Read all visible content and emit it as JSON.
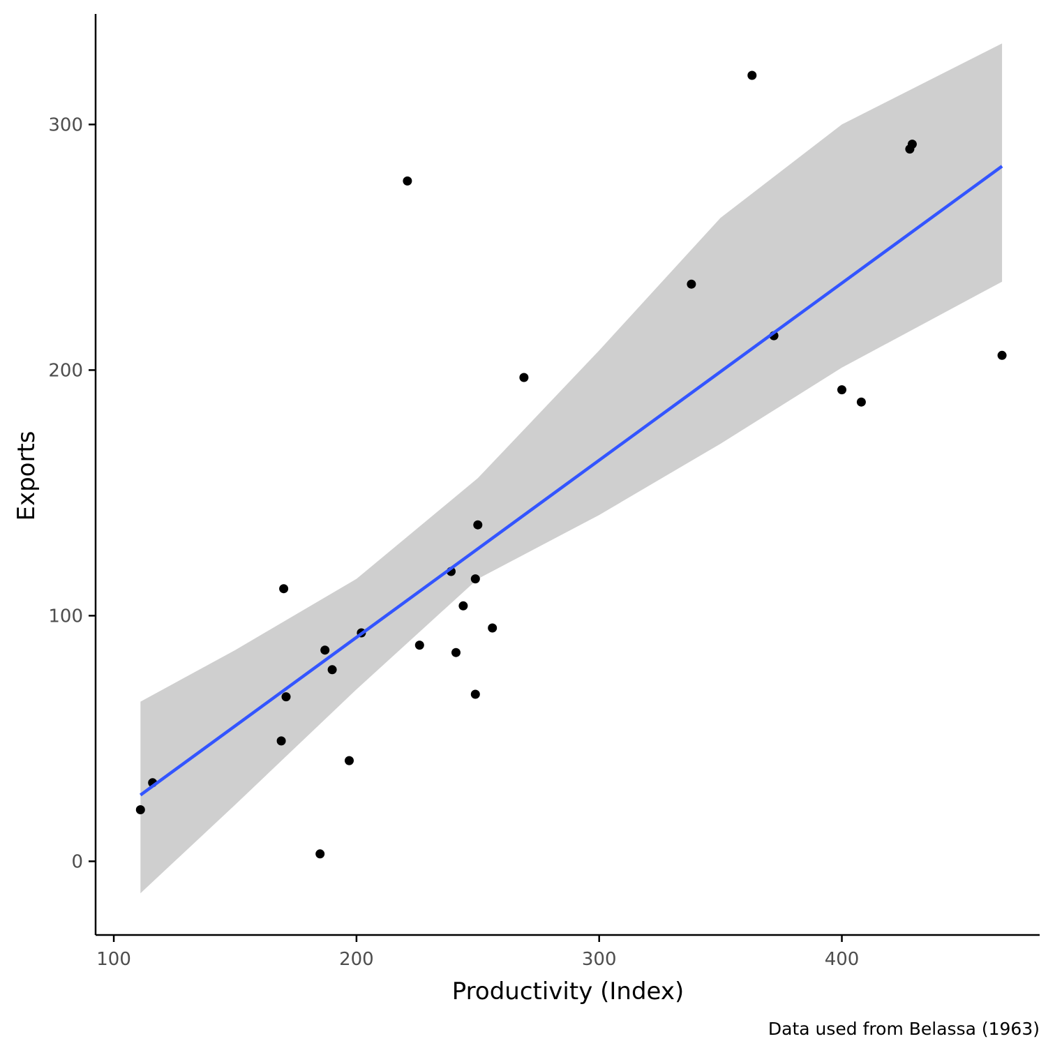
{
  "chart_data": {
    "type": "scatter",
    "title": "",
    "xlabel": "Productivity (Index)",
    "ylabel": "Exports",
    "caption": "Data used from Belassa (1963)",
    "xlim": [
      92.5,
      481.5
    ],
    "ylim": [
      -30,
      345
    ],
    "xticks": [
      100,
      200,
      300,
      400
    ],
    "yticks": [
      0,
      100,
      200,
      300
    ],
    "grid": false,
    "legend": "none",
    "points": [
      {
        "x": 111,
        "y": 21
      },
      {
        "x": 116,
        "y": 32
      },
      {
        "x": 169,
        "y": 49
      },
      {
        "x": 171,
        "y": 67
      },
      {
        "x": 170,
        "y": 111
      },
      {
        "x": 185,
        "y": 3
      },
      {
        "x": 187,
        "y": 86
      },
      {
        "x": 190,
        "y": 78
      },
      {
        "x": 197,
        "y": 41
      },
      {
        "x": 202,
        "y": 93
      },
      {
        "x": 221,
        "y": 277
      },
      {
        "x": 226,
        "y": 88
      },
      {
        "x": 239,
        "y": 118
      },
      {
        "x": 241,
        "y": 85
      },
      {
        "x": 244,
        "y": 104
      },
      {
        "x": 249,
        "y": 115
      },
      {
        "x": 249,
        "y": 68
      },
      {
        "x": 250,
        "y": 137
      },
      {
        "x": 256,
        "y": 95
      },
      {
        "x": 269,
        "y": 197
      },
      {
        "x": 338,
        "y": 235
      },
      {
        "x": 363,
        "y": 320
      },
      {
        "x": 372,
        "y": 214
      },
      {
        "x": 400,
        "y": 192
      },
      {
        "x": 408,
        "y": 187
      },
      {
        "x": 428,
        "y": 290
      },
      {
        "x": 429,
        "y": 292
      },
      {
        "x": 466,
        "y": 206
      }
    ],
    "fit": {
      "method": "linear",
      "x_range": [
        111,
        466
      ],
      "line_y": [
        27,
        283
      ],
      "ribbon": [
        {
          "x": 111,
          "lower": -13,
          "upper": 65
        },
        {
          "x": 150,
          "lower": 23,
          "upper": 86
        },
        {
          "x": 200,
          "lower": 70,
          "upper": 115
        },
        {
          "x": 250,
          "lower": 115,
          "upper": 156
        },
        {
          "x": 300,
          "lower": 141,
          "upper": 208
        },
        {
          "x": 350,
          "lower": 170,
          "upper": 262
        },
        {
          "x": 400,
          "lower": 201,
          "upper": 300
        },
        {
          "x": 466,
          "lower": 236,
          "upper": 333
        }
      ]
    },
    "colors": {
      "points": "#000000",
      "fit_line": "#3355ff",
      "ribbon": "#cfcfcf",
      "axis": "#000000",
      "tick_label": "#4d4d4d"
    }
  }
}
